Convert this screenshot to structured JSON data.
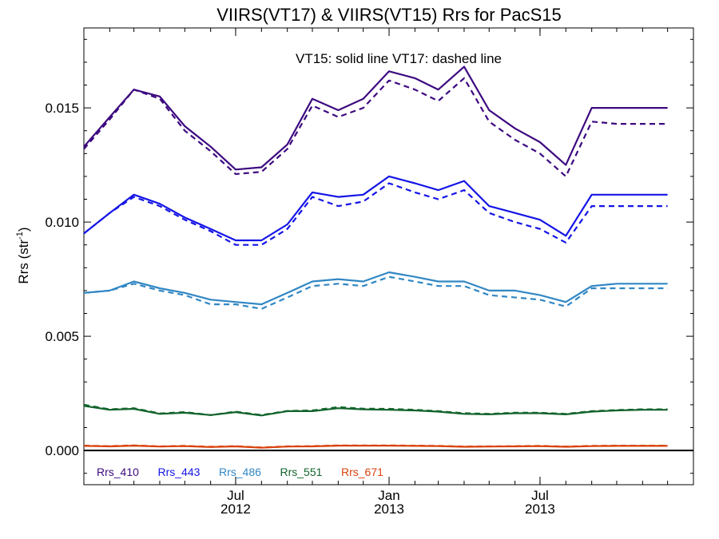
{
  "chart_data": {
    "type": "line",
    "title": "VIIRS(VT17) & VIIRS(VT15)  Rrs for PacS15",
    "ylabel": "Rrs (str",
    "ylabel_sup": "-1",
    "ylabel_end": ")",
    "xlabel": "",
    "annotation": "VT15: solid line   VT17: dashed line",
    "ylim": [
      -0.0015,
      0.0185
    ],
    "xlim": [
      "2012-01-01",
      "2014-01-01"
    ],
    "grid": false,
    "legend_position": "bottom-left inside",
    "yticks": [
      {
        "value": 0.0,
        "label": "0.000"
      },
      {
        "value": 0.005,
        "label": "0.005"
      },
      {
        "value": 0.01,
        "label": "0.010"
      },
      {
        "value": 0.015,
        "label": "0.015"
      }
    ],
    "xticks": [
      {
        "date": "2012-07-01",
        "line1": "Jul",
        "line2": "2012"
      },
      {
        "date": "2013-01-01",
        "line1": "Jan",
        "line2": "2013"
      },
      {
        "date": "2013-07-01",
        "line1": "Jul",
        "line2": "2013"
      }
    ],
    "x": [
      "2012-01-01",
      "2012-02-01",
      "2012-03-01",
      "2012-04-01",
      "2012-05-01",
      "2012-06-01",
      "2012-07-01",
      "2012-08-01",
      "2012-09-01",
      "2012-10-01",
      "2012-11-01",
      "2012-12-01",
      "2013-01-01",
      "2013-02-01",
      "2013-03-01",
      "2013-04-01",
      "2013-05-01",
      "2013-06-01",
      "2013-07-01",
      "2013-08-01",
      "2013-09-01",
      "2013-10-01",
      "2013-11-01",
      "2013-12-01"
    ],
    "zero_line": 0.0,
    "series": [
      {
        "name": "Rrs_410",
        "color": "#3d0a80",
        "style": "solid",
        "values": [
          0.0133,
          0.0146,
          0.0158,
          0.0155,
          0.0142,
          0.0133,
          0.0123,
          0.0124,
          0.0134,
          0.0154,
          0.0149,
          0.0154,
          0.0166,
          0.0163,
          0.0158,
          0.0168,
          0.0149,
          0.0141,
          0.0135,
          0.0125,
          0.015,
          0.015,
          0.015,
          0.015
        ]
      },
      {
        "name": "Rrs_410",
        "color": "#3d0a80",
        "style": "dashed",
        "values": [
          0.0132,
          0.0145,
          0.0158,
          0.0154,
          0.014,
          0.0131,
          0.0121,
          0.0122,
          0.0132,
          0.0151,
          0.0146,
          0.015,
          0.0162,
          0.0158,
          0.0153,
          0.0163,
          0.0144,
          0.0136,
          0.013,
          0.012,
          0.0144,
          0.0143,
          0.0143,
          0.0143
        ]
      },
      {
        "name": "Rrs_443",
        "color": "#1414e6",
        "style": "solid",
        "values": [
          0.0095,
          0.0104,
          0.0112,
          0.0108,
          0.0102,
          0.0097,
          0.0092,
          0.0092,
          0.0099,
          0.0113,
          0.0111,
          0.0112,
          0.012,
          0.0117,
          0.0114,
          0.0118,
          0.0107,
          0.0104,
          0.0101,
          0.0094,
          0.0112,
          0.0112,
          0.0112,
          0.0112
        ]
      },
      {
        "name": "Rrs_443",
        "color": "#1414e6",
        "style": "dashed",
        "values": [
          0.0095,
          0.0104,
          0.0111,
          0.0107,
          0.0101,
          0.0096,
          0.009,
          0.009,
          0.0097,
          0.0111,
          0.0107,
          0.0109,
          0.0117,
          0.0113,
          0.011,
          0.0114,
          0.0104,
          0.01,
          0.0097,
          0.0091,
          0.0107,
          0.0107,
          0.0107,
          0.0107
        ]
      },
      {
        "name": "Rrs_486",
        "color": "#3187c4",
        "style": "solid",
        "values": [
          0.0069,
          0.007,
          0.0074,
          0.0071,
          0.0069,
          0.0066,
          0.0065,
          0.0064,
          0.0069,
          0.0074,
          0.0075,
          0.0074,
          0.0078,
          0.0076,
          0.0074,
          0.0074,
          0.007,
          0.007,
          0.0068,
          0.0065,
          0.0072,
          0.0073,
          0.0073,
          0.0073
        ]
      },
      {
        "name": "Rrs_486",
        "color": "#3187c4",
        "style": "dashed",
        "values": [
          0.0069,
          0.007,
          0.0073,
          0.007,
          0.0068,
          0.0064,
          0.0064,
          0.0062,
          0.0067,
          0.0072,
          0.0073,
          0.0072,
          0.0076,
          0.0074,
          0.0072,
          0.0072,
          0.0068,
          0.0067,
          0.0066,
          0.0063,
          0.0071,
          0.0071,
          0.0071,
          0.0071
        ]
      },
      {
        "name": "Rrs_551",
        "color": "#12642c",
        "style": "solid",
        "values": [
          0.00195,
          0.00178,
          0.00182,
          0.0016,
          0.00165,
          0.00155,
          0.00168,
          0.00153,
          0.00172,
          0.00172,
          0.00185,
          0.0018,
          0.00178,
          0.00175,
          0.0017,
          0.0016,
          0.00158,
          0.00163,
          0.00163,
          0.00158,
          0.0017,
          0.00175,
          0.00178,
          0.00178
        ]
      },
      {
        "name": "Rrs_551",
        "color": "#12642c",
        "style": "dashed",
        "values": [
          0.002,
          0.0018,
          0.00185,
          0.00162,
          0.00168,
          0.00155,
          0.0017,
          0.00155,
          0.00173,
          0.00175,
          0.0019,
          0.00183,
          0.00182,
          0.00178,
          0.00172,
          0.00163,
          0.0016,
          0.00165,
          0.00165,
          0.0016,
          0.00172,
          0.00177,
          0.0018,
          0.0018
        ]
      },
      {
        "name": "Rrs_671",
        "color": "#d9420d",
        "style": "solid",
        "values": [
          0.0002,
          0.00018,
          0.00021,
          0.00017,
          0.00019,
          0.00015,
          0.00018,
          0.00012,
          0.00017,
          0.00018,
          0.00021,
          0.00021,
          0.00021,
          0.0002,
          0.00019,
          0.00016,
          0.00017,
          0.00018,
          0.00019,
          0.00016,
          0.00019,
          0.0002,
          0.0002,
          0.0002
        ]
      },
      {
        "name": "Rrs_671",
        "color": "#d9420d",
        "style": "dashed",
        "values": [
          0.00021,
          0.00019,
          0.00022,
          0.00018,
          0.0002,
          0.00016,
          0.00019,
          0.00013,
          0.00018,
          0.00019,
          0.00022,
          0.00022,
          0.00022,
          0.00021,
          0.0002,
          0.00017,
          0.00018,
          0.00019,
          0.0002,
          0.00017,
          0.0002,
          0.00021,
          0.00021,
          0.00021
        ]
      }
    ],
    "legend": [
      {
        "label": "Rrs_410",
        "color": "#3d0a80"
      },
      {
        "label": "Rrs_443",
        "color": "#1414e6"
      },
      {
        "label": "Rrs_486",
        "color": "#3187c4"
      },
      {
        "label": "Rrs_551",
        "color": "#12642c"
      },
      {
        "label": "Rrs_671",
        "color": "#d9420d"
      }
    ]
  }
}
